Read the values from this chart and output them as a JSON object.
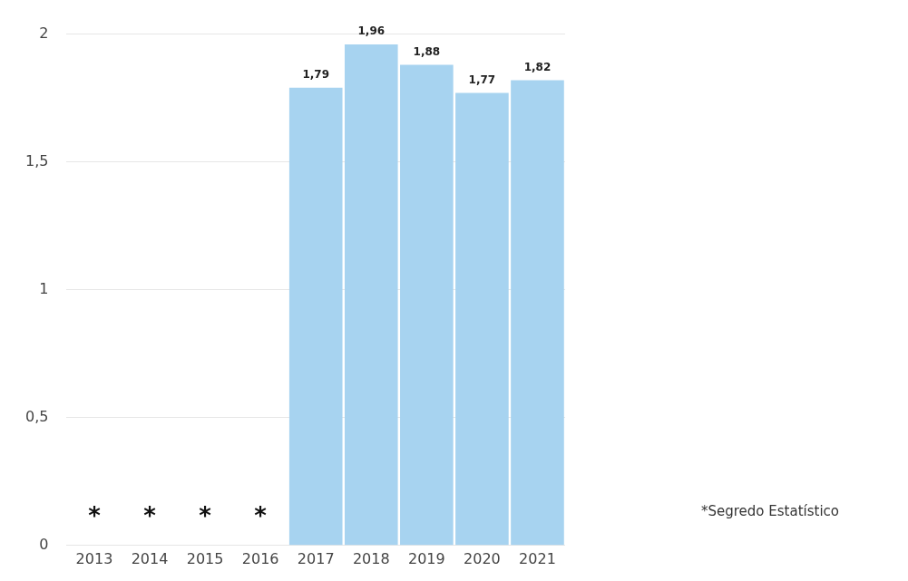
{
  "chart_data": {
    "type": "bar",
    "categories": [
      "2013",
      "2014",
      "2015",
      "2016",
      "2017",
      "2018",
      "2019",
      "2020",
      "2021"
    ],
    "values": [
      null,
      null,
      null,
      null,
      1.79,
      1.96,
      1.88,
      1.77,
      1.82
    ],
    "value_labels": [
      null,
      null,
      null,
      null,
      "1,79",
      "1,96",
      "1,88",
      "1,77",
      "1,82"
    ],
    "color": "#a7d3f0",
    "ylim": [
      0,
      2
    ],
    "yticks": [
      {
        "value": 0,
        "label": "0"
      },
      {
        "value": 0.5,
        "label": "0,5"
      },
      {
        "value": 1,
        "label": "1"
      },
      {
        "value": 1.5,
        "label": "1,5"
      },
      {
        "value": 2,
        "label": "2"
      }
    ],
    "grid": "y",
    "legend": false,
    "annotations": [
      "*",
      "*",
      "*",
      "*",
      "*Segredo Estatístico"
    ]
  }
}
